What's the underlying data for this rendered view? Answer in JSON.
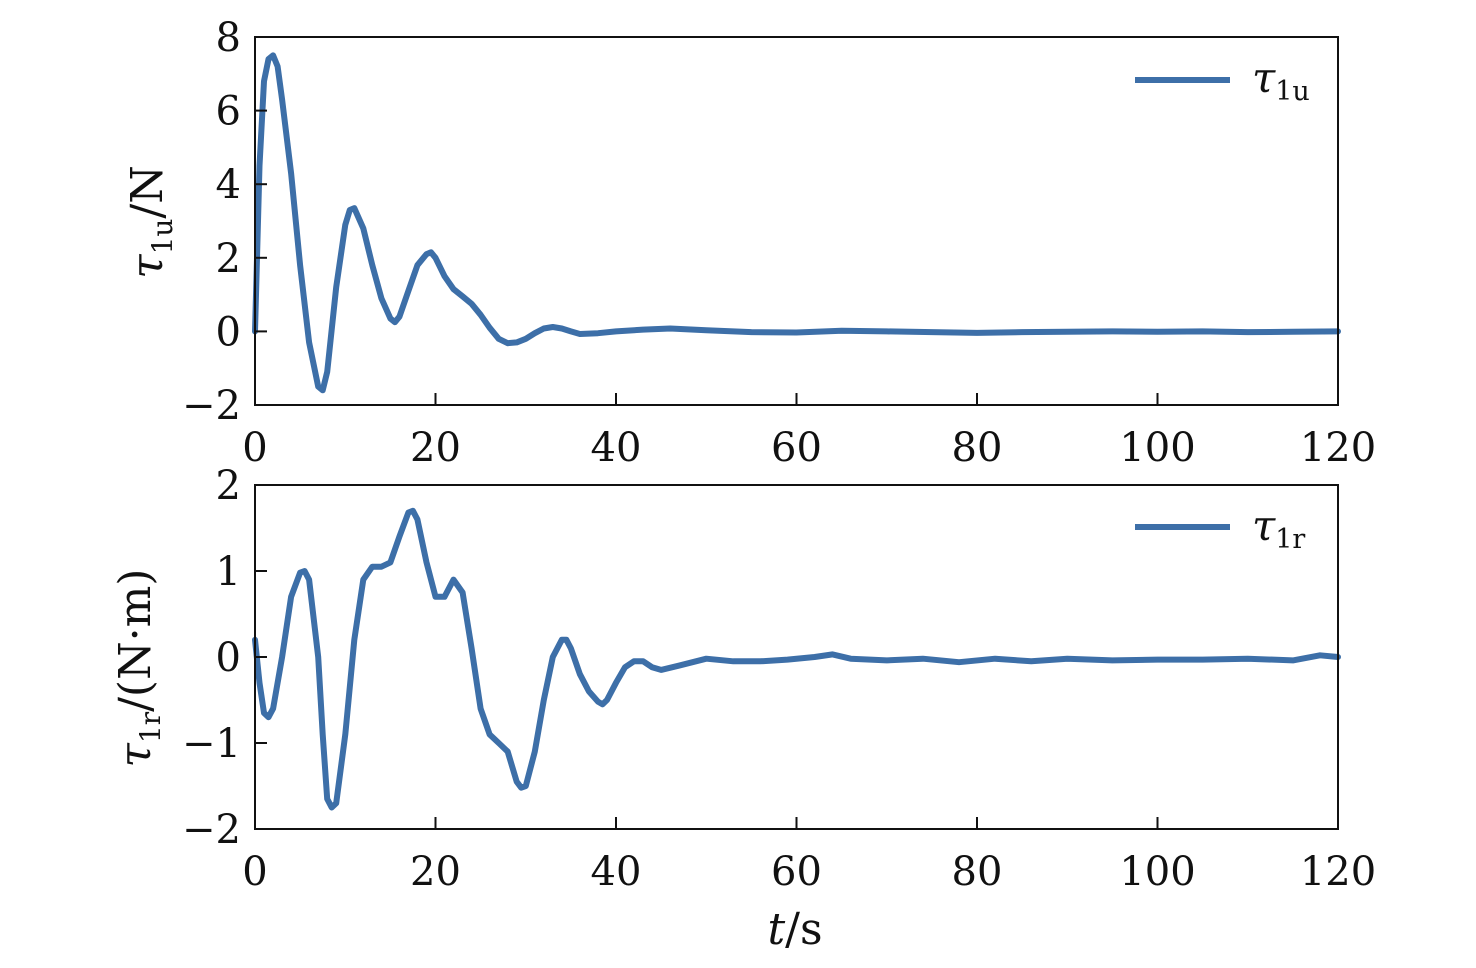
{
  "chart_data": [
    {
      "type": "line",
      "xlim": [
        0,
        120
      ],
      "ylim": [
        -2,
        8
      ],
      "xticks": [
        0,
        20,
        40,
        60,
        80,
        100,
        120
      ],
      "yticks": [
        -2,
        0,
        2,
        4,
        6,
        8
      ],
      "xtick_labels": [
        "0",
        "20",
        "40",
        "60",
        "80",
        "100",
        "120"
      ],
      "ytick_labels": [
        "−2",
        "0",
        "2",
        "4",
        "6",
        "8"
      ],
      "ylabel": {
        "base": "τ",
        "sub": "1u",
        "unit": "/N"
      },
      "legend": {
        "position": "top-right",
        "base": "τ",
        "sub": "1u"
      },
      "grid": false,
      "series": [
        {
          "color": "#3d6fa8",
          "x": [
            0,
            0.5,
            1,
            1.5,
            2,
            2.5,
            3,
            4,
            5,
            6,
            7,
            7.5,
            8,
            9,
            10,
            10.5,
            11,
            12,
            13,
            14,
            15,
            15.5,
            16,
            17,
            18,
            19,
            19.5,
            20,
            21,
            22,
            23,
            24,
            25,
            26,
            27,
            28,
            29,
            30,
            31,
            32,
            33,
            34,
            35,
            36,
            38,
            40,
            43,
            46,
            50,
            55,
            60,
            65,
            70,
            75,
            80,
            85,
            90,
            95,
            100,
            105,
            110,
            115,
            120
          ],
          "y": [
            0,
            4.5,
            6.8,
            7.4,
            7.5,
            7.2,
            6.3,
            4.3,
            1.8,
            -0.3,
            -1.5,
            -1.6,
            -1.1,
            1.2,
            2.9,
            3.3,
            3.35,
            2.8,
            1.8,
            0.9,
            0.35,
            0.25,
            0.4,
            1.1,
            1.8,
            2.1,
            2.15,
            2.0,
            1.5,
            1.15,
            0.95,
            0.75,
            0.45,
            0.1,
            -0.2,
            -0.32,
            -0.3,
            -0.2,
            -0.05,
            0.08,
            0.12,
            0.08,
            0.0,
            -0.07,
            -0.05,
            0.0,
            0.05,
            0.08,
            0.03,
            -0.02,
            -0.03,
            0.02,
            0.0,
            -0.02,
            -0.04,
            -0.02,
            -0.01,
            0.0,
            -0.01,
            0.0,
            -0.02,
            -0.01,
            0.0
          ]
        }
      ]
    },
    {
      "type": "line",
      "xlim": [
        0,
        120
      ],
      "ylim": [
        -2,
        2
      ],
      "xticks": [
        0,
        20,
        40,
        60,
        80,
        100,
        120
      ],
      "yticks": [
        -2,
        -1,
        0,
        1,
        2
      ],
      "xtick_labels": [
        "0",
        "20",
        "40",
        "60",
        "80",
        "100",
        "120"
      ],
      "ytick_labels": [
        "−2",
        "−1",
        "0",
        "1",
        "2"
      ],
      "xlabel": {
        "var": "t",
        "unit": "/s"
      },
      "ylabel": {
        "base": "τ",
        "sub": "1r",
        "unit": "/(N·m)"
      },
      "legend": {
        "position": "top-right",
        "base": "τ",
        "sub": "1r"
      },
      "grid": false,
      "series": [
        {
          "color": "#3d6fa8",
          "x": [
            0,
            0.5,
            1,
            1.5,
            2,
            3,
            4,
            5,
            5.5,
            6,
            7,
            7.5,
            8,
            8.5,
            9,
            10,
            11,
            12,
            13,
            14,
            15,
            16,
            17,
            17.5,
            18,
            19,
            20,
            21,
            22,
            23,
            24,
            25,
            26,
            27,
            28,
            29,
            29.5,
            30,
            31,
            32,
            33,
            34,
            34.5,
            35,
            36,
            37,
            38,
            38.5,
            39,
            40,
            41,
            42,
            43,
            44,
            45,
            47,
            50,
            53,
            56,
            59,
            62,
            64,
            66,
            70,
            74,
            78,
            82,
            86,
            90,
            95,
            100,
            105,
            110,
            115,
            118,
            120
          ],
          "y": [
            0.2,
            -0.3,
            -0.65,
            -0.7,
            -0.6,
            0.0,
            0.7,
            0.98,
            1.0,
            0.9,
            0.0,
            -0.9,
            -1.65,
            -1.75,
            -1.7,
            -0.9,
            0.2,
            0.9,
            1.05,
            1.05,
            1.1,
            1.4,
            1.68,
            1.7,
            1.6,
            1.1,
            0.7,
            0.7,
            0.9,
            0.75,
            0.1,
            -0.6,
            -0.9,
            -1.0,
            -1.1,
            -1.45,
            -1.52,
            -1.5,
            -1.1,
            -0.5,
            0.0,
            0.2,
            0.2,
            0.1,
            -0.2,
            -0.4,
            -0.52,
            -0.55,
            -0.5,
            -0.3,
            -0.12,
            -0.05,
            -0.05,
            -0.12,
            -0.15,
            -0.1,
            -0.02,
            -0.05,
            -0.05,
            -0.03,
            0.0,
            0.03,
            -0.02,
            -0.04,
            -0.02,
            -0.06,
            -0.02,
            -0.05,
            -0.02,
            -0.04,
            -0.03,
            -0.03,
            -0.02,
            -0.04,
            0.02,
            0.0
          ]
        }
      ]
    }
  ]
}
